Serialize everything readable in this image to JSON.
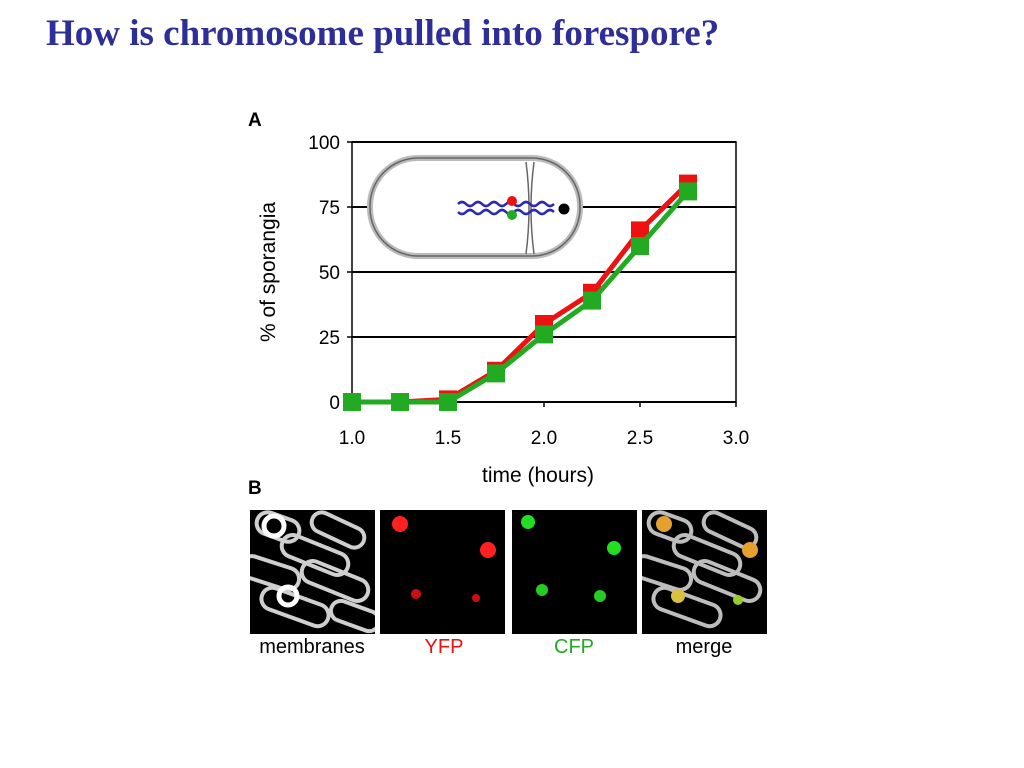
{
  "slide": {
    "title": "How is chromosome pulled into forespore?"
  },
  "panels": {
    "a_label": "A",
    "b_label": "B"
  },
  "chart_data": {
    "type": "line",
    "xlabel": "time (hours)",
    "ylabel": "% of sporangia",
    "xlim": [
      1.0,
      3.0
    ],
    "ylim": [
      0,
      100
    ],
    "xticks": [
      "1.0",
      "1.5",
      "2.0",
      "2.5",
      "3.0"
    ],
    "yticks": [
      "0",
      "25",
      "50",
      "75",
      "100"
    ],
    "grid": "horizontal",
    "x": [
      1.0,
      1.25,
      1.5,
      1.75,
      2.0,
      2.25,
      2.5,
      2.75
    ],
    "series": [
      {
        "color": "#ee1111",
        "values": [
          0,
          0,
          1,
          12,
          30,
          42,
          66,
          84
        ]
      },
      {
        "color": "#22aa22",
        "values": [
          0,
          0,
          0,
          11,
          26,
          39,
          60,
          81
        ]
      }
    ]
  },
  "micrographs": [
    {
      "caption": "membranes",
      "color": "#000000"
    },
    {
      "caption": "YFP",
      "color": "#ee1111"
    },
    {
      "caption": "CFP",
      "color": "#22aa22"
    },
    {
      "caption": "merge",
      "color": "#000000"
    }
  ]
}
